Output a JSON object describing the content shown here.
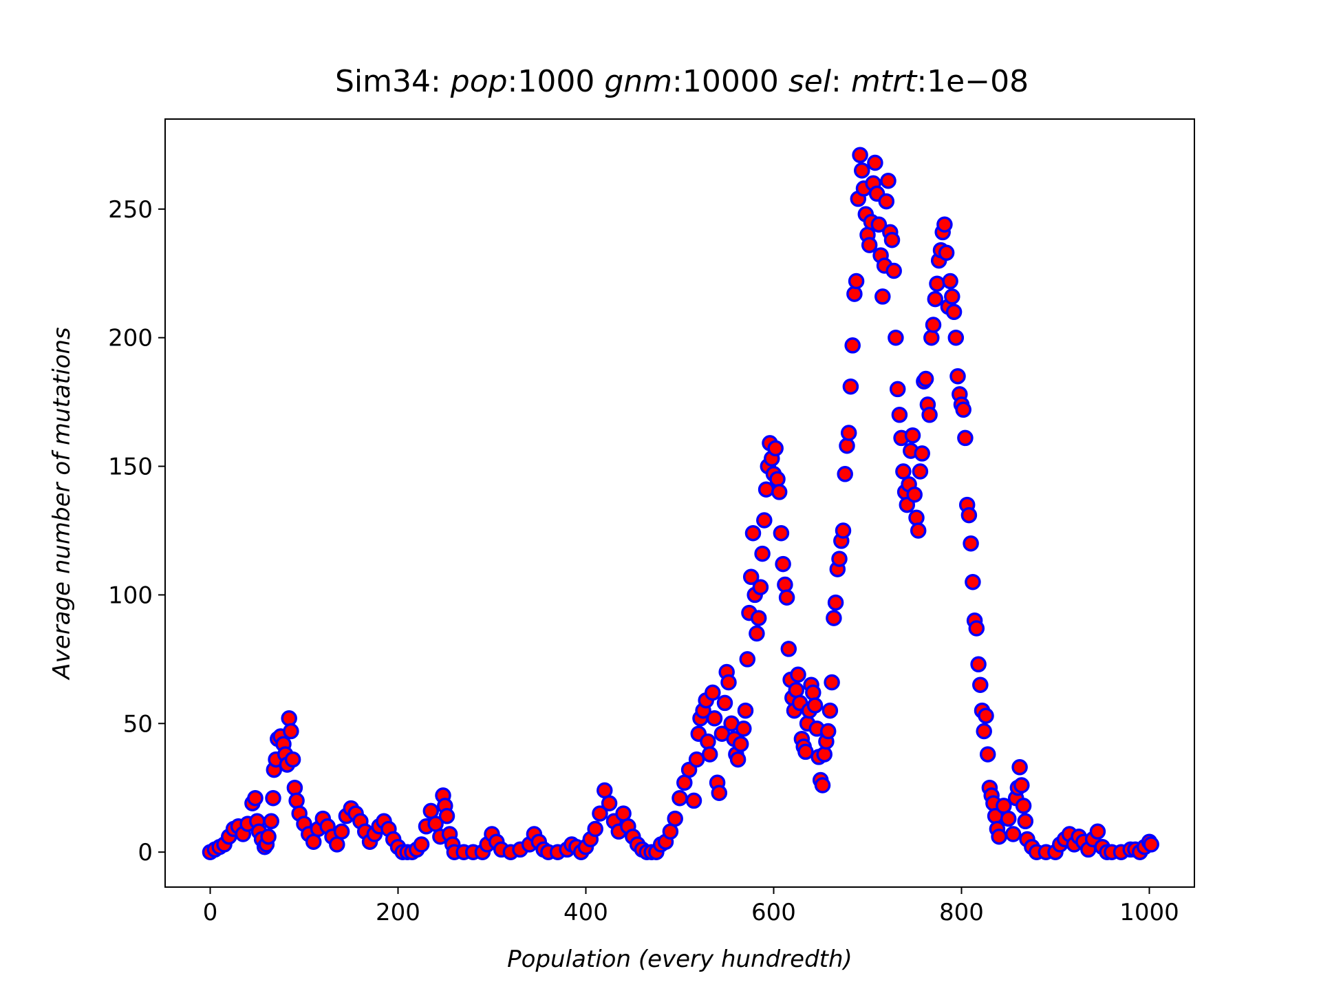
{
  "chart_data": {
    "type": "scatter",
    "title_prefix": "Sim34: ",
    "title_parts": [
      "pop",
      ":1000 ",
      "gnm",
      ":10000 ",
      "sel",
      ":  ",
      "mtrt",
      ":1e−08"
    ],
    "xlabel": "Population (every hundredth)",
    "ylabel": "Average number of mutations",
    "xlim": [
      -48,
      1048
    ],
    "ylim": [
      -13.6,
      285
    ],
    "xticks": [
      0,
      200,
      400,
      600,
      800,
      1000
    ],
    "yticks": [
      0,
      50,
      100,
      150,
      200,
      250
    ],
    "marker": {
      "shape": "circle",
      "face_color": "#ff0000",
      "edge_color": "#0000ff"
    },
    "grid": false,
    "legend": "none",
    "points": [
      [
        0,
        0
      ],
      [
        5,
        1
      ],
      [
        10,
        2
      ],
      [
        15,
        3
      ],
      [
        20,
        6
      ],
      [
        25,
        9
      ],
      [
        30,
        10
      ],
      [
        35,
        7
      ],
      [
        40,
        11
      ],
      [
        45,
        19
      ],
      [
        48,
        21
      ],
      [
        50,
        12
      ],
      [
        52,
        8
      ],
      [
        55,
        5
      ],
      [
        58,
        2
      ],
      [
        60,
        3
      ],
      [
        62,
        6
      ],
      [
        65,
        12
      ],
      [
        67,
        21
      ],
      [
        68,
        32
      ],
      [
        70,
        36
      ],
      [
        72,
        44
      ],
      [
        75,
        45
      ],
      [
        78,
        42
      ],
      [
        80,
        38
      ],
      [
        82,
        34
      ],
      [
        84,
        52
      ],
      [
        86,
        47
      ],
      [
        88,
        36
      ],
      [
        90,
        25
      ],
      [
        92,
        20
      ],
      [
        95,
        15
      ],
      [
        100,
        11
      ],
      [
        105,
        7
      ],
      [
        110,
        4
      ],
      [
        115,
        9
      ],
      [
        120,
        13
      ],
      [
        125,
        10
      ],
      [
        130,
        6
      ],
      [
        135,
        3
      ],
      [
        140,
        8
      ],
      [
        145,
        14
      ],
      [
        150,
        17
      ],
      [
        155,
        15
      ],
      [
        160,
        12
      ],
      [
        165,
        8
      ],
      [
        170,
        4
      ],
      [
        175,
        7
      ],
      [
        180,
        10
      ],
      [
        185,
        12
      ],
      [
        190,
        9
      ],
      [
        195,
        5
      ],
      [
        200,
        2
      ],
      [
        205,
        0
      ],
      [
        210,
        0
      ],
      [
        215,
        0
      ],
      [
        220,
        1
      ],
      [
        225,
        3
      ],
      [
        230,
        10
      ],
      [
        235,
        16
      ],
      [
        240,
        11
      ],
      [
        245,
        6
      ],
      [
        248,
        22
      ],
      [
        250,
        18
      ],
      [
        252,
        14
      ],
      [
        255,
        7
      ],
      [
        258,
        3
      ],
      [
        260,
        0
      ],
      [
        270,
        0
      ],
      [
        280,
        0
      ],
      [
        290,
        0
      ],
      [
        295,
        3
      ],
      [
        300,
        7
      ],
      [
        305,
        4
      ],
      [
        310,
        1
      ],
      [
        320,
        0
      ],
      [
        330,
        1
      ],
      [
        340,
        3
      ],
      [
        345,
        7
      ],
      [
        350,
        4
      ],
      [
        355,
        1
      ],
      [
        360,
        0
      ],
      [
        370,
        0
      ],
      [
        380,
        1
      ],
      [
        385,
        3
      ],
      [
        390,
        2
      ],
      [
        395,
        0
      ],
      [
        400,
        2
      ],
      [
        405,
        5
      ],
      [
        410,
        9
      ],
      [
        415,
        15
      ],
      [
        420,
        24
      ],
      [
        425,
        19
      ],
      [
        430,
        12
      ],
      [
        435,
        8
      ],
      [
        440,
        15
      ],
      [
        445,
        10
      ],
      [
        450,
        6
      ],
      [
        455,
        3
      ],
      [
        460,
        1
      ],
      [
        465,
        0
      ],
      [
        470,
        0
      ],
      [
        475,
        0
      ],
      [
        480,
        3
      ],
      [
        485,
        4
      ],
      [
        490,
        8
      ],
      [
        495,
        13
      ],
      [
        500,
        21
      ],
      [
        505,
        27
      ],
      [
        510,
        32
      ],
      [
        515,
        20
      ],
      [
        518,
        36
      ],
      [
        520,
        46
      ],
      [
        522,
        52
      ],
      [
        525,
        55
      ],
      [
        528,
        59
      ],
      [
        530,
        43
      ],
      [
        532,
        38
      ],
      [
        535,
        62
      ],
      [
        537,
        52
      ],
      [
        540,
        27
      ],
      [
        542,
        23
      ],
      [
        545,
        46
      ],
      [
        548,
        58
      ],
      [
        550,
        70
      ],
      [
        552,
        66
      ],
      [
        555,
        50
      ],
      [
        558,
        44
      ],
      [
        560,
        38
      ],
      [
        562,
        36
      ],
      [
        565,
        42
      ],
      [
        568,
        48
      ],
      [
        570,
        55
      ],
      [
        572,
        75
      ],
      [
        574,
        93
      ],
      [
        576,
        107
      ],
      [
        578,
        124
      ],
      [
        580,
        100
      ],
      [
        582,
        85
      ],
      [
        584,
        91
      ],
      [
        586,
        103
      ],
      [
        588,
        116
      ],
      [
        590,
        129
      ],
      [
        592,
        141
      ],
      [
        594,
        150
      ],
      [
        596,
        159
      ],
      [
        598,
        153
      ],
      [
        600,
        147
      ],
      [
        602,
        157
      ],
      [
        604,
        145
      ],
      [
        606,
        140
      ],
      [
        608,
        124
      ],
      [
        610,
        112
      ],
      [
        612,
        104
      ],
      [
        614,
        99
      ],
      [
        616,
        79
      ],
      [
        618,
        67
      ],
      [
        620,
        60
      ],
      [
        622,
        55
      ],
      [
        624,
        63
      ],
      [
        626,
        69
      ],
      [
        628,
        58
      ],
      [
        630,
        44
      ],
      [
        632,
        41
      ],
      [
        634,
        39
      ],
      [
        636,
        50
      ],
      [
        638,
        55
      ],
      [
        640,
        65
      ],
      [
        642,
        62
      ],
      [
        644,
        57
      ],
      [
        646,
        48
      ],
      [
        648,
        37
      ],
      [
        650,
        28
      ],
      [
        652,
        26
      ],
      [
        654,
        38
      ],
      [
        656,
        43
      ],
      [
        658,
        47
      ],
      [
        660,
        55
      ],
      [
        662,
        66
      ],
      [
        664,
        91
      ],
      [
        666,
        97
      ],
      [
        668,
        110
      ],
      [
        670,
        114
      ],
      [
        672,
        121
      ],
      [
        674,
        125
      ],
      [
        676,
        147
      ],
      [
        678,
        158
      ],
      [
        680,
        163
      ],
      [
        682,
        181
      ],
      [
        684,
        197
      ],
      [
        686,
        217
      ],
      [
        688,
        222
      ],
      [
        690,
        254
      ],
      [
        692,
        271
      ],
      [
        694,
        265
      ],
      [
        696,
        258
      ],
      [
        698,
        248
      ],
      [
        700,
        240
      ],
      [
        702,
        236
      ],
      [
        704,
        245
      ],
      [
        706,
        260
      ],
      [
        708,
        268
      ],
      [
        710,
        256
      ],
      [
        712,
        244
      ],
      [
        714,
        232
      ],
      [
        716,
        216
      ],
      [
        718,
        228
      ],
      [
        720,
        253
      ],
      [
        722,
        261
      ],
      [
        724,
        241
      ],
      [
        726,
        238
      ],
      [
        728,
        226
      ],
      [
        730,
        200
      ],
      [
        732,
        180
      ],
      [
        734,
        170
      ],
      [
        736,
        161
      ],
      [
        738,
        148
      ],
      [
        740,
        140
      ],
      [
        742,
        135
      ],
      [
        744,
        143
      ],
      [
        746,
        156
      ],
      [
        748,
        162
      ],
      [
        750,
        139
      ],
      [
        752,
        130
      ],
      [
        754,
        125
      ],
      [
        756,
        148
      ],
      [
        758,
        155
      ],
      [
        760,
        183
      ],
      [
        762,
        184
      ],
      [
        764,
        174
      ],
      [
        766,
        170
      ],
      [
        768,
        200
      ],
      [
        770,
        205
      ],
      [
        772,
        215
      ],
      [
        774,
        221
      ],
      [
        776,
        230
      ],
      [
        778,
        234
      ],
      [
        780,
        241
      ],
      [
        782,
        244
      ],
      [
        784,
        233
      ],
      [
        786,
        212
      ],
      [
        788,
        222
      ],
      [
        790,
        216
      ],
      [
        792,
        210
      ],
      [
        794,
        200
      ],
      [
        796,
        185
      ],
      [
        798,
        178
      ],
      [
        800,
        174
      ],
      [
        802,
        172
      ],
      [
        804,
        161
      ],
      [
        806,
        135
      ],
      [
        808,
        131
      ],
      [
        810,
        120
      ],
      [
        812,
        105
      ],
      [
        814,
        90
      ],
      [
        816,
        87
      ],
      [
        818,
        73
      ],
      [
        820,
        65
      ],
      [
        822,
        55
      ],
      [
        824,
        47
      ],
      [
        826,
        53
      ],
      [
        828,
        38
      ],
      [
        830,
        25
      ],
      [
        832,
        22
      ],
      [
        834,
        19
      ],
      [
        836,
        14
      ],
      [
        838,
        9
      ],
      [
        840,
        6
      ],
      [
        845,
        18
      ],
      [
        850,
        13
      ],
      [
        855,
        7
      ],
      [
        858,
        21
      ],
      [
        860,
        25
      ],
      [
        862,
        33
      ],
      [
        864,
        26
      ],
      [
        866,
        18
      ],
      [
        868,
        12
      ],
      [
        870,
        5
      ],
      [
        875,
        2
      ],
      [
        880,
        0
      ],
      [
        890,
        0
      ],
      [
        900,
        0
      ],
      [
        905,
        3
      ],
      [
        910,
        5
      ],
      [
        915,
        7
      ],
      [
        920,
        3
      ],
      [
        925,
        6
      ],
      [
        930,
        4
      ],
      [
        935,
        1
      ],
      [
        940,
        5
      ],
      [
        945,
        8
      ],
      [
        950,
        2
      ],
      [
        955,
        0
      ],
      [
        960,
        0
      ],
      [
        970,
        0
      ],
      [
        980,
        1
      ],
      [
        985,
        1
      ],
      [
        990,
        0
      ],
      [
        995,
        2
      ],
      [
        1000,
        4
      ],
      [
        1002,
        3
      ]
    ]
  }
}
